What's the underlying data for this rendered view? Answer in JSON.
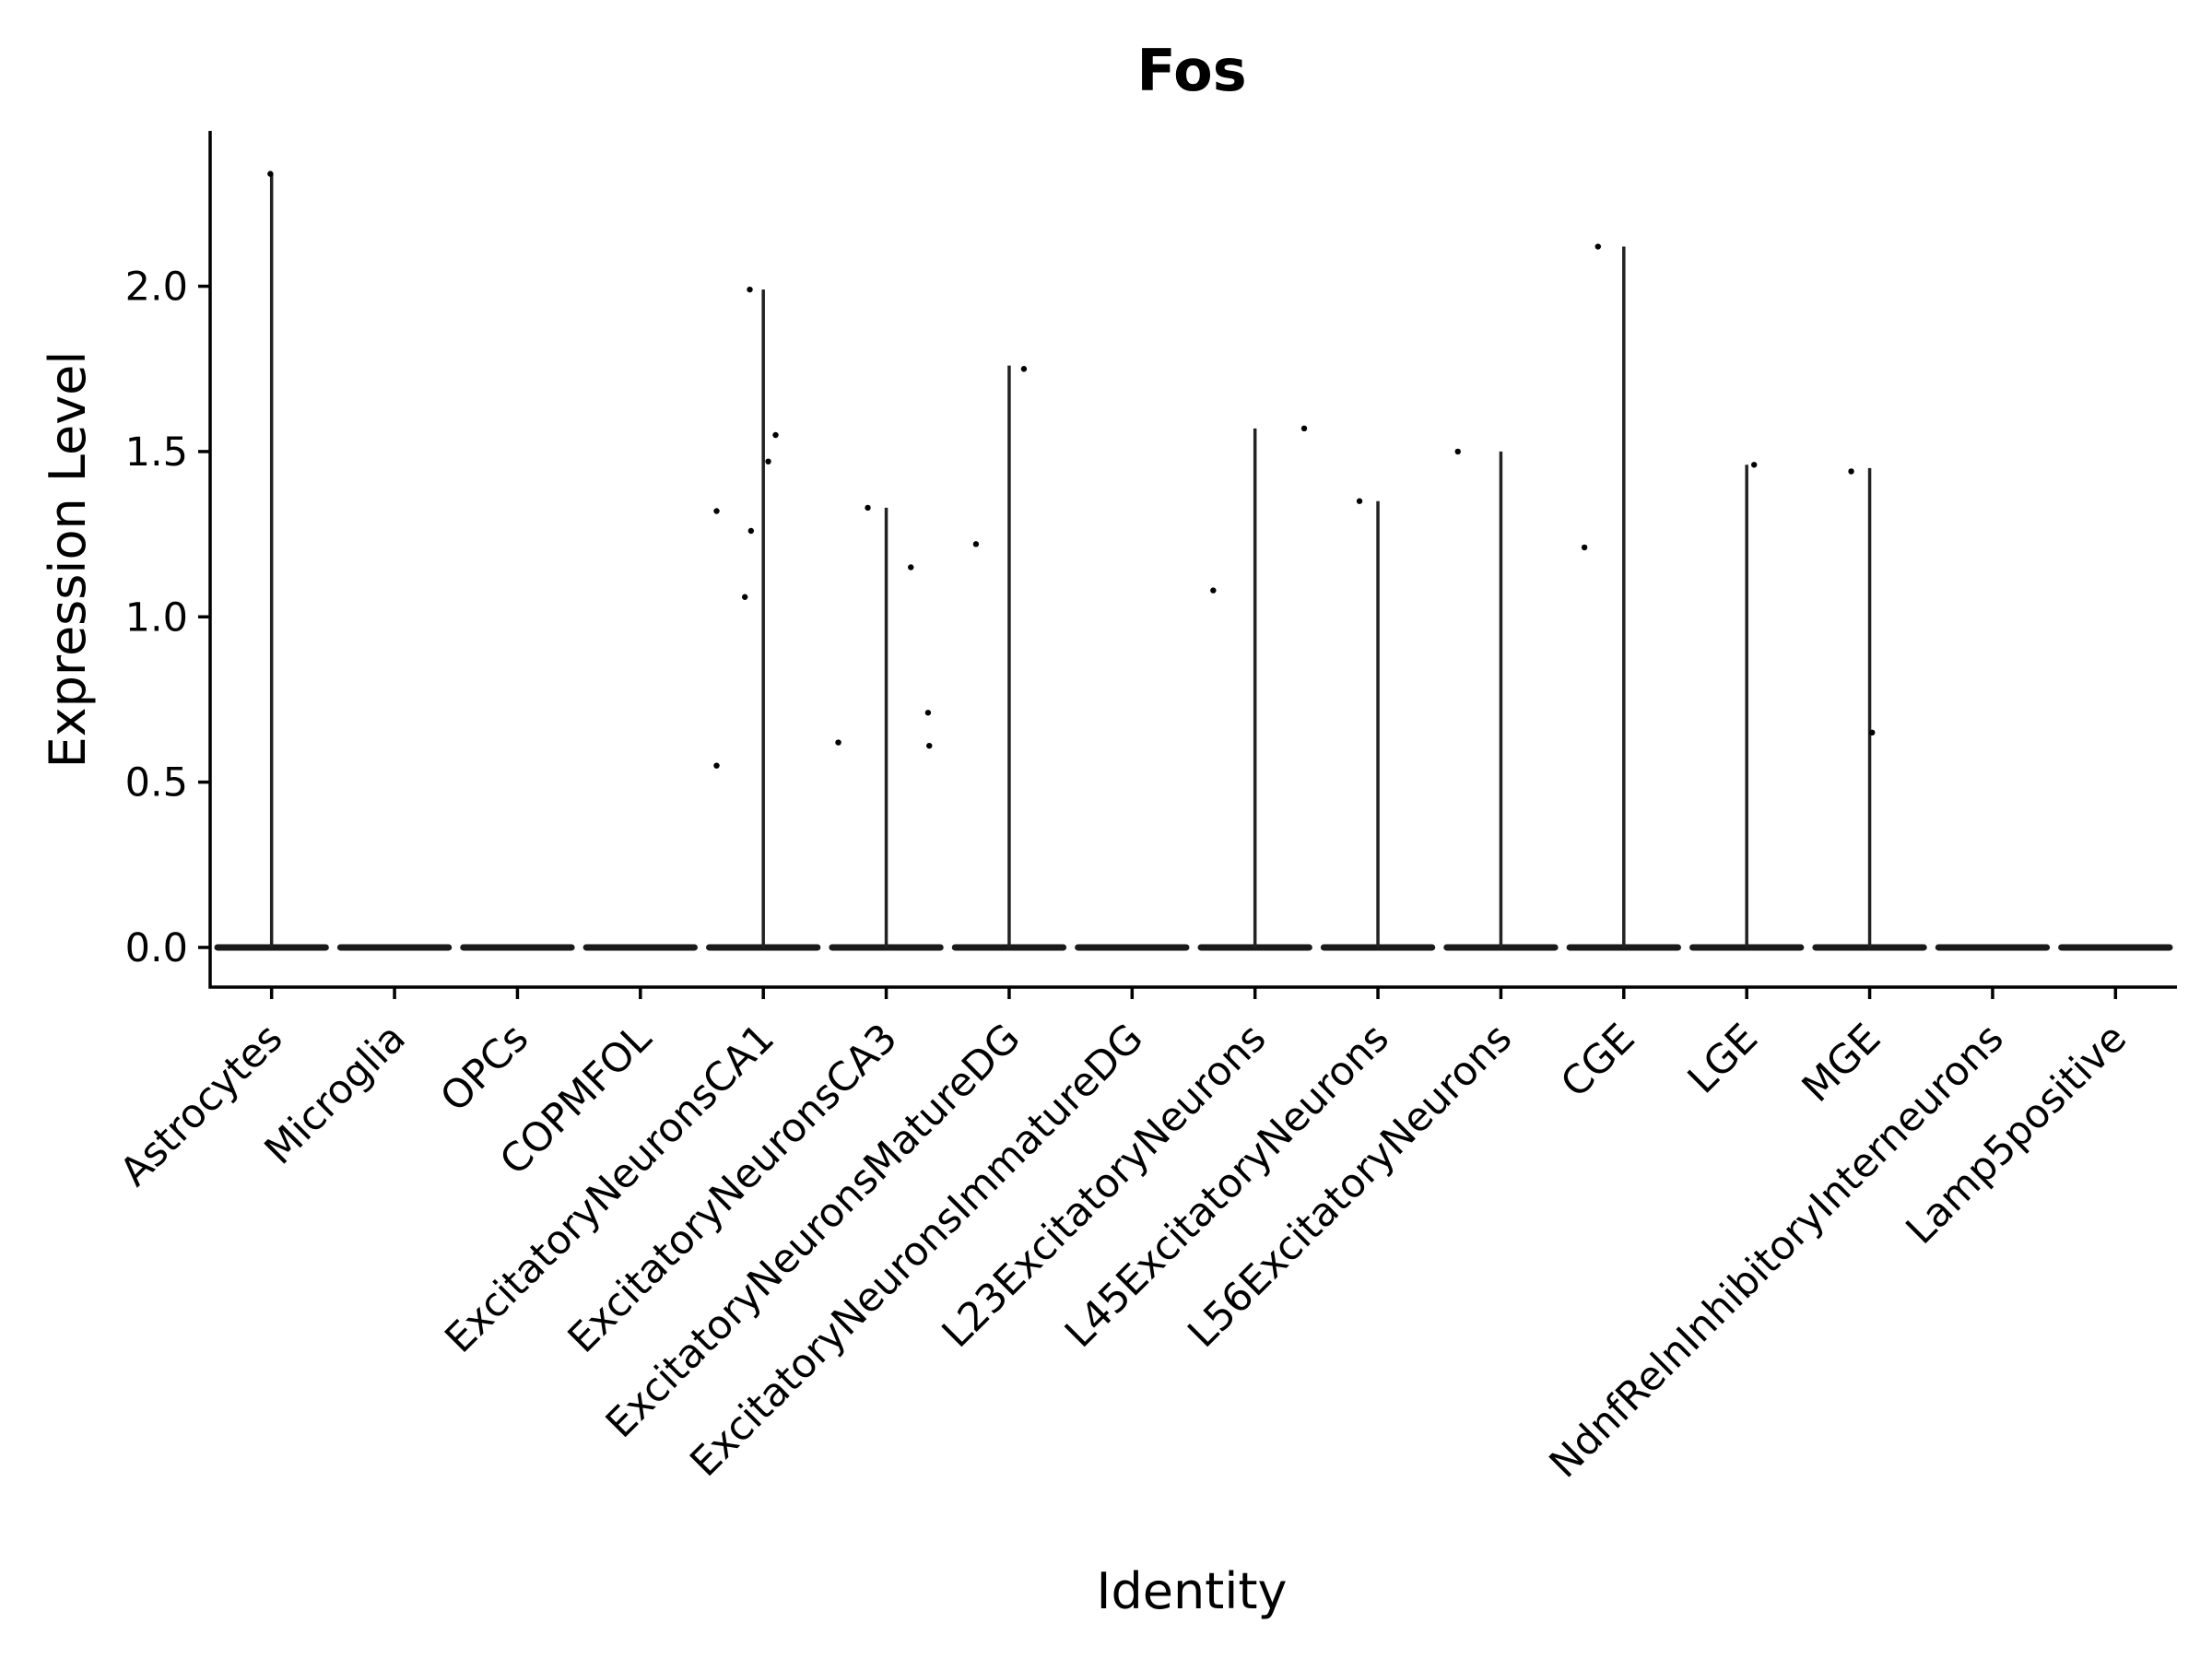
{
  "chart_data": {
    "type": "violin",
    "title": "Fos",
    "xlabel": "Identity",
    "ylabel": "Expression Level",
    "ylim": [
      -0.12,
      2.47
    ],
    "yticks": [
      "0.0",
      "0.5",
      "1.0",
      "1.5",
      "2.0"
    ],
    "ytick_values": [
      0.0,
      0.5,
      1.0,
      1.5,
      2.0
    ],
    "categories": [
      "Astrocytes",
      "Microglia",
      "OPCs",
      "COPMFOL",
      "ExcitatoryNeuronsCA1",
      "ExcitatoryNeuronsCA3",
      "ExcitatoryNeuronsMatureDG",
      "ExcitatoryNeuronsImmatureDG",
      "L23ExcitatoryNeurons",
      "L45ExcitatoryNeurons",
      "L56ExcitatoryNeurons",
      "CGE",
      "LGE",
      "MGE",
      "NdnfRelnInhibitoryInterneurons",
      "Lamp5positive"
    ],
    "max_values": [
      2.34,
      0,
      0,
      0,
      1.99,
      1.33,
      1.76,
      0,
      1.57,
      1.35,
      1.5,
      2.12,
      1.46,
      1.45,
      0,
      0
    ],
    "points": [
      {
        "category": "Astrocytes",
        "offset": -0.01,
        "value": 2.34
      },
      {
        "category": "ExcitatoryNeuronsCA1",
        "offset": -0.38,
        "value": 1.32
      },
      {
        "category": "ExcitatoryNeuronsCA1",
        "offset": -0.38,
        "value": 0.55
      },
      {
        "category": "ExcitatoryNeuronsCA1",
        "offset": -0.11,
        "value": 1.99
      },
      {
        "category": "ExcitatoryNeuronsCA1",
        "offset": -0.1,
        "value": 1.26
      },
      {
        "category": "ExcitatoryNeuronsCA1",
        "offset": -0.15,
        "value": 1.06
      },
      {
        "category": "ExcitatoryNeuronsCA1",
        "offset": 0.04,
        "value": 1.47
      },
      {
        "category": "ExcitatoryNeuronsCA1",
        "offset": 0.1,
        "value": 1.55
      },
      {
        "category": "ExcitatoryNeuronsCA3",
        "offset": -0.39,
        "value": 0.62
      },
      {
        "category": "ExcitatoryNeuronsCA3",
        "offset": -0.15,
        "value": 1.33
      },
      {
        "category": "ExcitatoryNeuronsCA3",
        "offset": 0.2,
        "value": 1.15
      },
      {
        "category": "ExcitatoryNeuronsCA3",
        "offset": 0.34,
        "value": 0.71
      },
      {
        "category": "ExcitatoryNeuronsCA3",
        "offset": 0.35,
        "value": 0.61
      },
      {
        "category": "ExcitatoryNeuronsMatureDG",
        "offset": -0.27,
        "value": 1.22
      },
      {
        "category": "ExcitatoryNeuronsMatureDG",
        "offset": 0.12,
        "value": 1.75
      },
      {
        "category": "L23ExcitatoryNeurons",
        "offset": -0.34,
        "value": 1.08
      },
      {
        "category": "L23ExcitatoryNeurons",
        "offset": 0.4,
        "value": 1.57
      },
      {
        "category": "L45ExcitatoryNeurons",
        "offset": -0.15,
        "value": 1.35
      },
      {
        "category": "L56ExcitatoryNeurons",
        "offset": -0.35,
        "value": 1.5
      },
      {
        "category": "CGE",
        "offset": -0.32,
        "value": 1.21
      },
      {
        "category": "CGE",
        "offset": -0.21,
        "value": 2.12
      },
      {
        "category": "LGE",
        "offset": 0.06,
        "value": 1.46
      },
      {
        "category": "MGE",
        "offset": -0.15,
        "value": 1.44
      },
      {
        "category": "MGE",
        "offset": 0.02,
        "value": 0.65
      }
    ]
  }
}
